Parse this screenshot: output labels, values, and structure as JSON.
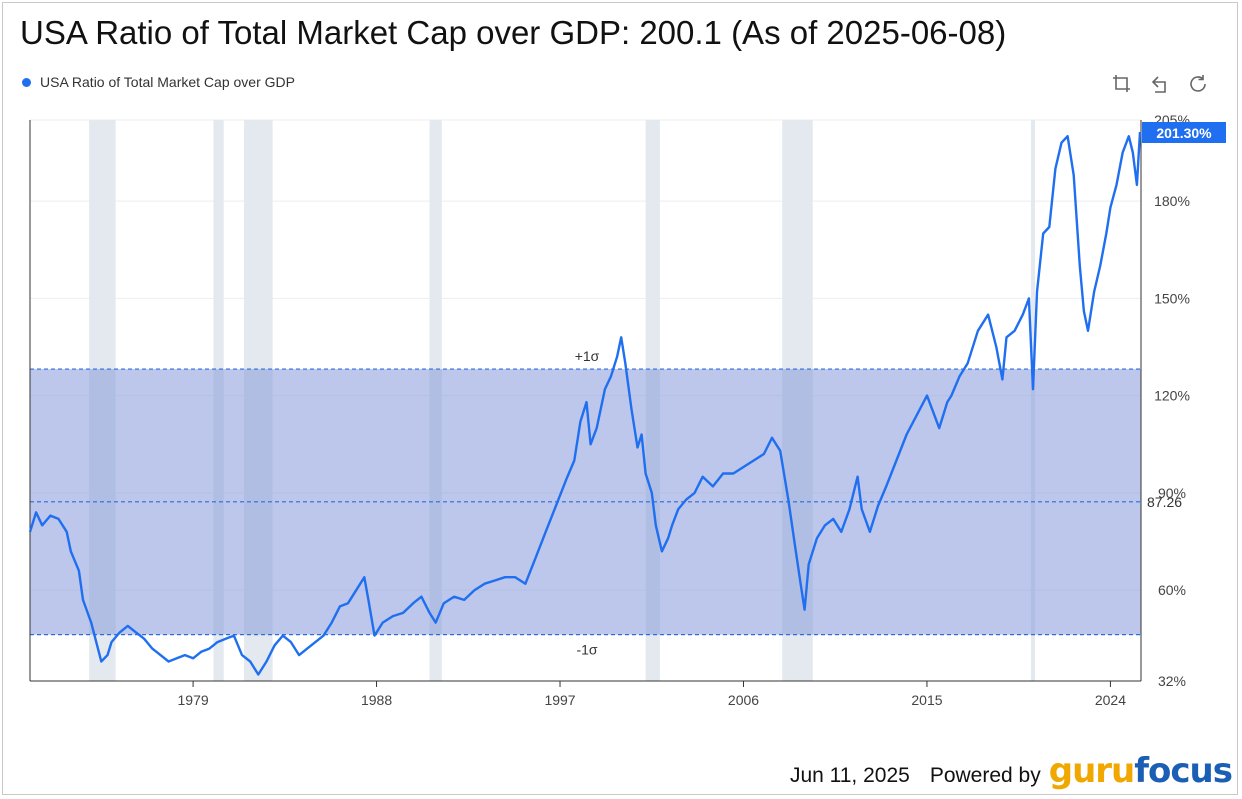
{
  "title": "USA Ratio of Total Market Cap over GDP: 200.1 (As of 2025-06-08)",
  "legend": {
    "label": "USA Ratio of Total Market Cap over GDP"
  },
  "toolbar": {
    "icons": [
      "crop-icon",
      "undo-icon",
      "refresh-icon"
    ]
  },
  "footer": {
    "date": "Jun 11, 2025",
    "powered": "Powered by",
    "logo_part1": "guru",
    "logo_part2": "focus"
  },
  "colors": {
    "line": "#1f6ff0",
    "band": "#8b9fdc",
    "recession": "#e3e9ef",
    "dash": "#2d6be0"
  },
  "chart_data": {
    "type": "line",
    "title": "USA Ratio of Total Market Cap over GDP: 200.1 (As of 2025-06-08)",
    "series_name": "USA Ratio of Total Market Cap over GDP",
    "xlim": [
      1971.0,
      2025.5
    ],
    "ylim": [
      32,
      205
    ],
    "x_ticks": [
      {
        "value": 1979,
        "label": "1979"
      },
      {
        "value": 1988,
        "label": "1988"
      },
      {
        "value": 1997,
        "label": "1997"
      },
      {
        "value": 2006,
        "label": "2006"
      },
      {
        "value": 2015,
        "label": "2015"
      },
      {
        "value": 2024,
        "label": "2024"
      }
    ],
    "y_ticks": [
      {
        "value": 32,
        "label": "32%"
      },
      {
        "value": 60,
        "label": "60%"
      },
      {
        "value": 90,
        "label": "90%"
      },
      {
        "value": 120,
        "label": "120%"
      },
      {
        "value": 150,
        "label": "150%"
      },
      {
        "value": 180,
        "label": "180%"
      },
      {
        "value": 205,
        "label": "205%"
      }
    ],
    "mean": {
      "value": 87.26,
      "label": "87.26"
    },
    "plus_sigma": {
      "value": 128.2,
      "label": "+1σ"
    },
    "minus_sigma": {
      "value": 46.3,
      "label": "-1σ"
    },
    "latest_badge": {
      "value": 201.3,
      "label": "201.30%"
    },
    "recessions": [
      [
        1973.9,
        1975.2
      ],
      [
        1980.0,
        1980.5
      ],
      [
        1981.5,
        1982.9
      ],
      [
        1990.6,
        1991.2
      ],
      [
        2001.2,
        2001.9
      ],
      [
        2007.9,
        2009.4
      ],
      [
        2020.1,
        2020.3
      ]
    ],
    "x": [
      1971.0,
      1971.3,
      1971.6,
      1972.0,
      1972.4,
      1972.8,
      1973.0,
      1973.4,
      1973.6,
      1974.0,
      1974.5,
      1974.8,
      1975.0,
      1975.4,
      1975.8,
      1976.2,
      1976.6,
      1977.0,
      1977.4,
      1977.8,
      1978.2,
      1978.6,
      1979.0,
      1979.4,
      1979.8,
      1980.2,
      1980.6,
      1981.0,
      1981.4,
      1981.8,
      1982.2,
      1982.6,
      1983.0,
      1983.4,
      1983.8,
      1984.2,
      1984.6,
      1985.0,
      1985.4,
      1985.8,
      1986.2,
      1986.6,
      1987.0,
      1987.4,
      1987.6,
      1987.9,
      1988.3,
      1988.8,
      1989.3,
      1989.8,
      1990.2,
      1990.6,
      1990.9,
      1991.3,
      1991.8,
      1992.3,
      1992.8,
      1993.3,
      1993.8,
      1994.3,
      1994.8,
      1995.3,
      1995.8,
      1996.3,
      1996.8,
      1997.3,
      1997.7,
      1998.0,
      1998.3,
      1998.5,
      1998.8,
      1999.2,
      1999.5,
      1999.8,
      2000.0,
      2000.2,
      2000.5,
      2000.8,
      2001.0,
      2001.2,
      2001.5,
      2001.7,
      2002.0,
      2002.3,
      2002.5,
      2002.8,
      2003.2,
      2003.6,
      2004.0,
      2004.5,
      2005.0,
      2005.5,
      2006.0,
      2006.5,
      2007.0,
      2007.4,
      2007.8,
      2008.2,
      2008.5,
      2008.8,
      2009.0,
      2009.2,
      2009.6,
      2010.0,
      2010.4,
      2010.8,
      2011.2,
      2011.6,
      2011.8,
      2012.2,
      2012.6,
      2013.0,
      2013.5,
      2014.0,
      2014.5,
      2015.0,
      2015.3,
      2015.6,
      2016.0,
      2016.2,
      2016.6,
      2017.0,
      2017.5,
      2018.0,
      2018.4,
      2018.7,
      2018.9,
      2019.3,
      2019.7,
      2020.0,
      2020.2,
      2020.4,
      2020.7,
      2021.0,
      2021.3,
      2021.6,
      2021.9,
      2022.2,
      2022.5,
      2022.7,
      2022.9,
      2023.2,
      2023.5,
      2023.8,
      2024.0,
      2024.3,
      2024.6,
      2024.9,
      2025.1,
      2025.3,
      2025.45
    ],
    "values": [
      78,
      84,
      80,
      83,
      82,
      78,
      72,
      66,
      57,
      50,
      38,
      40,
      44,
      47,
      49,
      47,
      45,
      42,
      40,
      38,
      39,
      40,
      39,
      41,
      42,
      44,
      45,
      46,
      40,
      38,
      34,
      38,
      43,
      46,
      44,
      40,
      42,
      44,
      46,
      50,
      55,
      56,
      60,
      64,
      57,
      46,
      50,
      52,
      53,
      56,
      58,
      53,
      50,
      56,
      58,
      57,
      60,
      62,
      63,
      64,
      64,
      62,
      70,
      78,
      86,
      94,
      100,
      112,
      118,
      105,
      110,
      122,
      126,
      132,
      138,
      130,
      116,
      104,
      108,
      96,
      90,
      80,
      72,
      76,
      80,
      85,
      88,
      90,
      95,
      92,
      96,
      96,
      98,
      100,
      102,
      107,
      103,
      88,
      75,
      62,
      54,
      68,
      76,
      80,
      82,
      78,
      85,
      95,
      85,
      78,
      86,
      92,
      100,
      108,
      114,
      120,
      115,
      110,
      118,
      120,
      126,
      130,
      140,
      145,
      135,
      125,
      138,
      140,
      145,
      150,
      122,
      152,
      170,
      172,
      190,
      198,
      200,
      188,
      160,
      146,
      140,
      152,
      160,
      170,
      178,
      185,
      195,
      200,
      195,
      185,
      201.3
    ]
  }
}
